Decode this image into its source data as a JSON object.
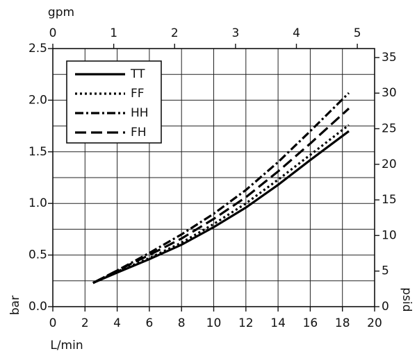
{
  "chart_data": {
    "type": "line",
    "x_label": "L/min",
    "x2_label": "gpm",
    "y_label": "bar",
    "y2_label": "psid",
    "xlim": [
      0,
      20
    ],
    "xticks": [
      0,
      2,
      4,
      6,
      8,
      10,
      12,
      14,
      16,
      18,
      20
    ],
    "x2lim": [
      0,
      5.284
    ],
    "x2ticks": [
      0,
      1,
      2,
      3,
      4,
      5
    ],
    "ylim": [
      0,
      2.5
    ],
    "yticks": [
      {
        "value": 0,
        "label": "0.0"
      },
      0.5,
      {
        "value": 1,
        "label": "1.0"
      },
      1.5,
      {
        "value": 2,
        "label": "2.0"
      },
      2.5
    ],
    "yminorticks": [
      0.25,
      0.75,
      1.25,
      1.75,
      2.25
    ],
    "y2lim": [
      0,
      36.26
    ],
    "y2ticks": [
      0,
      5,
      10,
      15,
      20,
      25,
      30,
      35
    ],
    "grid": true,
    "legend": "upper left",
    "x": [
      2.5,
      4,
      6,
      8,
      10,
      12,
      14,
      16,
      18.4
    ],
    "series": [
      {
        "name": "TT",
        "color": "#000000",
        "dash": "solid",
        "values": [
          0.23,
          0.33,
          0.46,
          0.6,
          0.77,
          0.96,
          1.18,
          1.42,
          1.7
        ]
      },
      {
        "name": "FF",
        "color": "#000000",
        "dash": "dotted",
        "values": [
          0.23,
          0.34,
          0.47,
          0.62,
          0.8,
          1.0,
          1.23,
          1.47,
          1.76
        ]
      },
      {
        "name": "HH",
        "color": "#000000",
        "dash": "dashdot",
        "values": [
          0.23,
          0.35,
          0.52,
          0.7,
          0.9,
          1.13,
          1.4,
          1.7,
          2.07
        ]
      },
      {
        "name": "FH",
        "color": "#000000",
        "dash": "dashed",
        "values": [
          0.23,
          0.35,
          0.5,
          0.66,
          0.85,
          1.06,
          1.31,
          1.58,
          1.92
        ]
      }
    ]
  }
}
